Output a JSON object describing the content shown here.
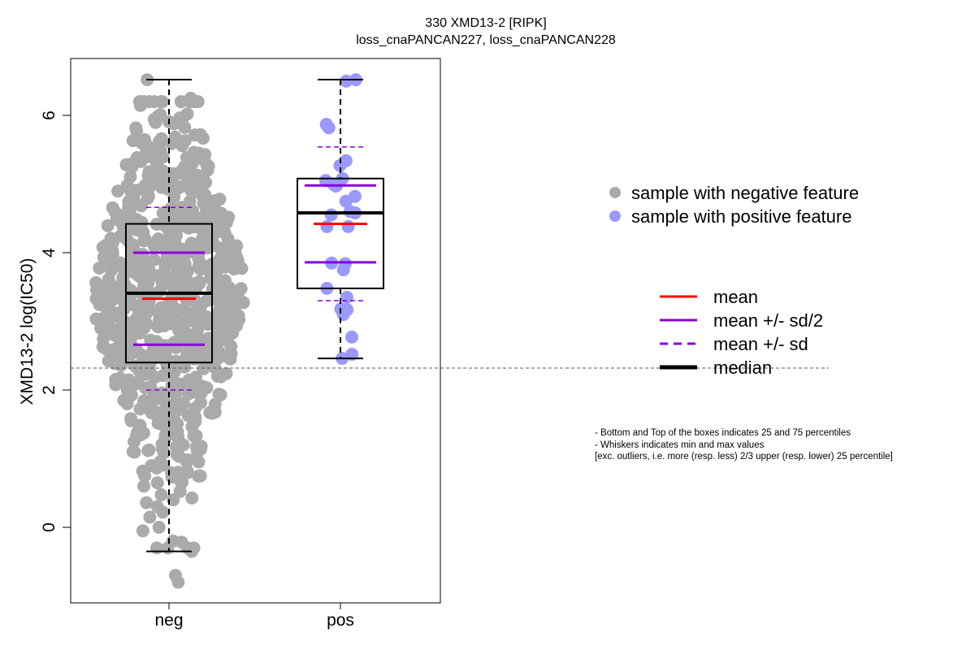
{
  "chart_data": {
    "type": "box-swarm",
    "title": "330 XMD13-2 [RIPK]",
    "subtitle": "loss_cnaPANCAN227, loss_cnaPANCAN228",
    "ylabel": "XMD13-2 log(IC50)",
    "xlabel": "",
    "categories": [
      "neg",
      "pos"
    ],
    "ylim": [
      -1.1,
      6.7
    ],
    "yticks": [
      0,
      2,
      4,
      6
    ],
    "reference_line_y": 2.32,
    "grid": false,
    "colors": {
      "neg_points": "#aaaaaa",
      "pos_points": "#9999ff",
      "mean": "#ff0000",
      "sd": "#8800dd",
      "median": "#000000",
      "box": "#000000"
    },
    "groups": [
      {
        "name": "neg",
        "q1": 2.4,
        "median": 3.41,
        "q3": 4.42,
        "mean": 3.33,
        "mean_minus_half_sd": 2.66,
        "mean_plus_half_sd": 4.0,
        "mean_minus_sd": 2.0,
        "mean_plus_sd": 4.66,
        "whisker_low": -0.35,
        "whisker_high": 6.52,
        "point_count": 700,
        "points_sample": [
          6.52,
          6.25,
          6.02,
          5.98,
          5.62,
          5.6,
          5.45,
          5.3,
          5.1,
          4.9,
          4.6,
          4.2,
          3.8,
          3.4,
          3.0,
          2.6,
          2.2,
          1.8,
          1.5,
          1.2,
          0.9,
          0.6,
          0.3,
          0.0,
          -0.2,
          -0.35,
          -0.7,
          -0.8
        ]
      },
      {
        "name": "pos",
        "q1": 3.48,
        "median": 4.58,
        "q3": 5.08,
        "mean": 4.42,
        "mean_minus_half_sd": 3.86,
        "mean_plus_half_sd": 4.98,
        "mean_minus_sd": 3.3,
        "mean_plus_sd": 5.54,
        "whisker_low": 2.46,
        "whisker_high": 6.52,
        "points": [
          6.52,
          6.5,
          5.87,
          5.82,
          5.34,
          5.27,
          5.08,
          5.05,
          5.0,
          4.98,
          4.97,
          4.82,
          4.75,
          4.6,
          4.58,
          4.55,
          4.38,
          4.38,
          3.85,
          3.84,
          3.75,
          3.48,
          3.35,
          3.18,
          3.17,
          3.1,
          2.77,
          2.52,
          2.46
        ]
      }
    ],
    "legend_points": [
      {
        "label": "sample with negative feature",
        "color": "#aaaaaa"
      },
      {
        "label": "sample with positive feature",
        "color": "#9999ff"
      }
    ],
    "legend_lines": [
      {
        "label": "mean",
        "color": "#ff0000",
        "style": "solid"
      },
      {
        "label": "mean +/- sd/2",
        "color": "#8800dd",
        "style": "solid"
      },
      {
        "label": "mean +/- sd",
        "color": "#8800dd",
        "style": "dashed"
      },
      {
        "label": "median",
        "color": "#000000",
        "style": "solid-thick"
      }
    ],
    "notes": [
      "- Bottom and Top of the boxes indicates 25 and 75 percentiles",
      "- Whiskers indicates min and max values",
      "[exc. outliers, i.e. more (resp. less) 2/3 upper (resp. lower) 25 percentile]"
    ]
  }
}
